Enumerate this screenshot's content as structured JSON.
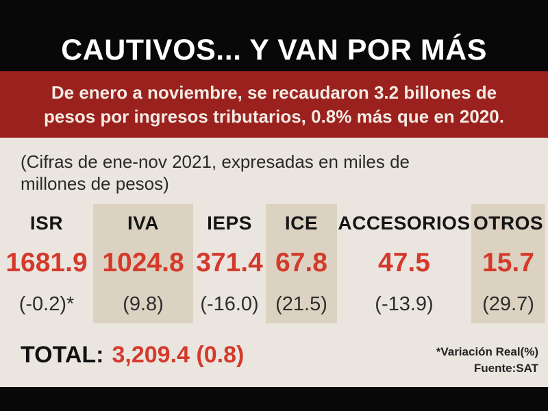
{
  "title": "CAUTIVOS... Y VAN POR MÁS",
  "banner": {
    "text": "De enero a noviembre, se recaudaron 3.2 billones de pesos por ingresos tributarios, 0.8% más que en 2020."
  },
  "note": "(Cifras de ene-nov 2021, expresadas en miles de millones de pesos)",
  "table": {
    "columns": [
      {
        "label": "ISR",
        "value": "1681.9",
        "variation": "(-0.2)*",
        "shaded": false
      },
      {
        "label": "IVA",
        "value": "1024.8",
        "variation": "(9.8)",
        "shaded": true
      },
      {
        "label": "IEPS",
        "value": "371.4",
        "variation": "(-16.0)",
        "shaded": false
      },
      {
        "label": "ICE",
        "value": "67.8",
        "variation": "(21.5)",
        "shaded": true
      },
      {
        "label": "ACCESORIOS",
        "value": "47.5",
        "variation": "(-13.9)",
        "shaded": false
      },
      {
        "label": "OTROS",
        "value": "15.7",
        "variation": "(29.7)",
        "shaded": true
      }
    ]
  },
  "total": {
    "label": "TOTAL:",
    "value": "3,209.4 (0.8)"
  },
  "footnote": {
    "line1": "*Variación Real(%)",
    "line2": "Fuente:SAT"
  },
  "colors": {
    "top_bottom_bars": "#080808",
    "banner_red": "#9b211e",
    "banner_text": "#f3ebe3",
    "background": "#eae6df",
    "shaded_column": "#dcd2c1",
    "value_red": "#d43a2c",
    "dark_text": "#151515"
  },
  "chart_data": {
    "type": "table",
    "title": "CAUTIVOS... Y VAN POR MÁS",
    "subtitle": "De enero a noviembre, se recaudaron 3.2 billones de pesos por ingresos tributarios, 0.8% más que en 2020.",
    "units": "miles de millones de pesos (ene-nov 2021)",
    "categories": [
      "ISR",
      "IVA",
      "IEPS",
      "ICE",
      "ACCESORIOS",
      "OTROS"
    ],
    "series": [
      {
        "name": "Recaudación ene-nov 2021 (miles de millones de pesos)",
        "values": [
          1681.9,
          1024.8,
          371.4,
          67.8,
          47.5,
          15.7
        ]
      },
      {
        "name": "Variación Real (%)",
        "values": [
          -0.2,
          9.8,
          -16.0,
          21.5,
          -13.9,
          29.7
        ]
      }
    ],
    "total": {
      "value": 3209.4,
      "variation_real_pct": 0.8
    },
    "source": "SAT"
  }
}
